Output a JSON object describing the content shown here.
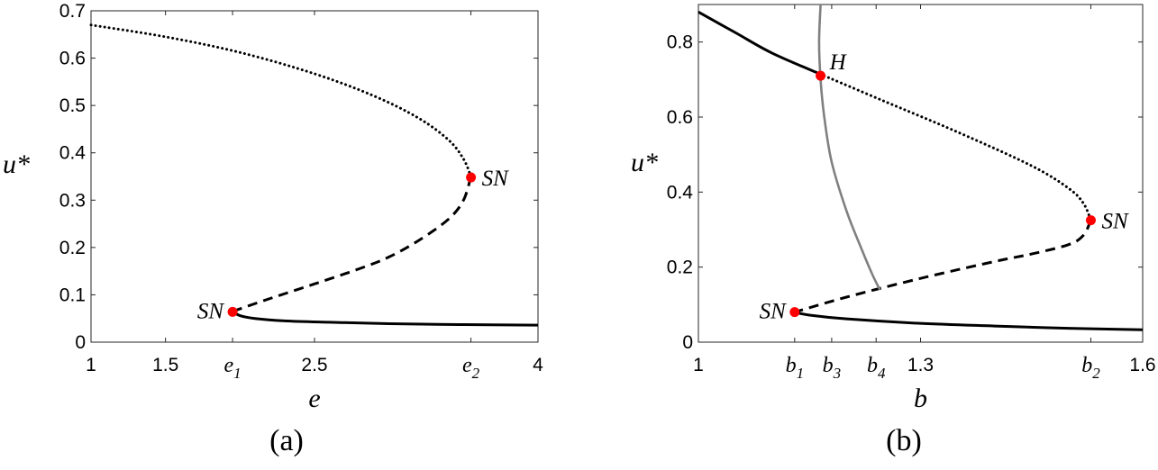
{
  "chart_data": [
    {
      "type": "line",
      "caption": "(a)",
      "xlabel": "e",
      "ylabel": "u*",
      "xlim": [
        1,
        4
      ],
      "ylim": [
        0,
        0.7
      ],
      "grid": false,
      "xticks": [
        {
          "value": 1,
          "label": "1"
        },
        {
          "value": 1.5,
          "label": "1.5"
        },
        {
          "value": 1.95,
          "label": "e",
          "sub": "1"
        },
        {
          "value": 2.5,
          "label": "2.5"
        },
        {
          "value": 3.55,
          "label": "e",
          "sub": "2"
        },
        {
          "value": 4,
          "label": "4"
        }
      ],
      "yticks": [
        {
          "value": 0,
          "label": "0"
        },
        {
          "value": 0.1,
          "label": "0.1"
        },
        {
          "value": 0.2,
          "label": "0.2"
        },
        {
          "value": 0.3,
          "label": "0.3"
        },
        {
          "value": 0.4,
          "label": "0.4"
        },
        {
          "value": 0.5,
          "label": "0.5"
        },
        {
          "value": 0.6,
          "label": "0.6"
        },
        {
          "value": 0.7,
          "label": "0.7"
        }
      ],
      "series": [
        {
          "style": "dotted",
          "color": "#000000",
          "x": [
            1.0,
            1.5,
            2.0,
            2.5,
            2.9,
            3.2,
            3.4,
            3.5,
            3.55
          ],
          "y": [
            0.67,
            0.645,
            0.612,
            0.567,
            0.52,
            0.473,
            0.427,
            0.387,
            0.35
          ]
        },
        {
          "style": "dashed",
          "color": "#000000",
          "x": [
            3.55,
            3.5,
            3.4,
            3.2,
            3.0,
            2.8,
            2.5,
            2.2,
            1.95
          ],
          "y": [
            0.35,
            0.3,
            0.26,
            0.215,
            0.18,
            0.155,
            0.123,
            0.092,
            0.065
          ]
        },
        {
          "style": "solid",
          "color": "#000000",
          "x": [
            1.95,
            2.0,
            2.1,
            2.3,
            2.6,
            3.0,
            3.5,
            4.0
          ],
          "y": [
            0.065,
            0.056,
            0.05,
            0.045,
            0.042,
            0.039,
            0.037,
            0.036
          ]
        }
      ],
      "points": [
        {
          "x": 3.55,
          "y": 0.348,
          "label": "SN",
          "label_side": "right",
          "color": "#ff0000"
        },
        {
          "x": 1.95,
          "y": 0.064,
          "label": "SN",
          "label_side": "left",
          "color": "#ff0000"
        }
      ]
    },
    {
      "type": "line",
      "caption": "(b)",
      "xlabel": "b",
      "ylabel": "u*",
      "xlim": [
        1,
        1.6
      ],
      "ylim": [
        0,
        0.9
      ],
      "grid": false,
      "xticks": [
        {
          "value": 1,
          "label": "1"
        },
        {
          "value": 1.13,
          "label": "b",
          "sub": "1"
        },
        {
          "value": 1.18,
          "label": "b",
          "sub": "3"
        },
        {
          "value": 1.24,
          "label": "b",
          "sub": "4"
        },
        {
          "value": 1.3,
          "label": "1.3"
        },
        {
          "value": 1.53,
          "label": "b",
          "sub": "2"
        },
        {
          "value": 1.6,
          "label": "1.6"
        }
      ],
      "yticks": [
        {
          "value": 0,
          "label": "0"
        },
        {
          "value": 0.2,
          "label": "0.2"
        },
        {
          "value": 0.4,
          "label": "0.4"
        },
        {
          "value": 0.6,
          "label": "0.6"
        },
        {
          "value": 0.8,
          "label": "0.8"
        }
      ],
      "series": [
        {
          "style": "solid",
          "color": "#000000",
          "x": [
            1.0,
            1.05,
            1.1,
            1.17
          ],
          "y": [
            0.88,
            0.825,
            0.77,
            0.71
          ]
        },
        {
          "style": "dotted",
          "color": "#000000",
          "x": [
            1.17,
            1.25,
            1.35,
            1.45,
            1.5,
            1.52,
            1.53
          ],
          "y": [
            0.71,
            0.643,
            0.56,
            0.47,
            0.41,
            0.37,
            0.325
          ]
        },
        {
          "style": "dashed",
          "color": "#000000",
          "x": [
            1.53,
            1.52,
            1.5,
            1.45,
            1.4,
            1.3,
            1.2,
            1.13
          ],
          "y": [
            0.325,
            0.285,
            0.26,
            0.235,
            0.215,
            0.17,
            0.12,
            0.08
          ]
        },
        {
          "style": "solid",
          "color": "#000000",
          "x": [
            1.13,
            1.15,
            1.2,
            1.3,
            1.4,
            1.5,
            1.6
          ],
          "y": [
            0.08,
            0.072,
            0.062,
            0.05,
            0.043,
            0.037,
            0.033
          ]
        },
        {
          "style": "solid",
          "color": "#808080",
          "x": [
            1.165,
            1.163,
            1.165,
            1.17,
            1.18,
            1.2,
            1.22,
            1.235,
            1.245
          ],
          "y": [
            0.9,
            0.8,
            0.7,
            0.6,
            0.48,
            0.35,
            0.25,
            0.18,
            0.14
          ]
        }
      ],
      "points": [
        {
          "x": 1.165,
          "y": 0.71,
          "label": "H",
          "label_side": "above-right",
          "color": "#ff0000"
        },
        {
          "x": 1.53,
          "y": 0.325,
          "label": "SN",
          "label_side": "right",
          "color": "#ff0000"
        },
        {
          "x": 1.13,
          "y": 0.08,
          "label": "SN",
          "label_side": "left",
          "color": "#ff0000"
        }
      ]
    }
  ]
}
